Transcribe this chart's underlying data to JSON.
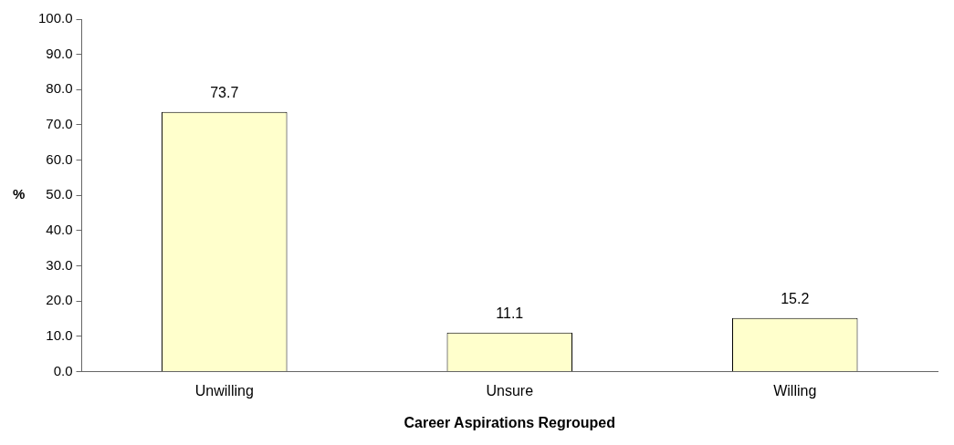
{
  "chart_data": {
    "type": "bar",
    "xlabel": "Career Aspirations Regrouped",
    "ylabel": "%",
    "categories": [
      "Unwilling",
      "Unsure",
      "Willing"
    ],
    "values": [
      73.7,
      11.1,
      15.2
    ],
    "color": "#ffffcc",
    "ylim": [
      0,
      100
    ],
    "yticks": [
      {
        "value": 0,
        "label": "0.0"
      },
      {
        "value": 10,
        "label": "10.0"
      },
      {
        "value": 20,
        "label": "20.0"
      },
      {
        "value": 30,
        "label": "30.0"
      },
      {
        "value": 40,
        "label": "40.0"
      },
      {
        "value": 50,
        "label": "50.0"
      },
      {
        "value": 60,
        "label": "60.0"
      },
      {
        "value": 70,
        "label": "70.0"
      },
      {
        "value": 80,
        "label": "80.0"
      },
      {
        "value": 90,
        "label": "90.0"
      },
      {
        "value": 100,
        "label": "100.0"
      }
    ],
    "grid": false,
    "data_labels": true
  }
}
